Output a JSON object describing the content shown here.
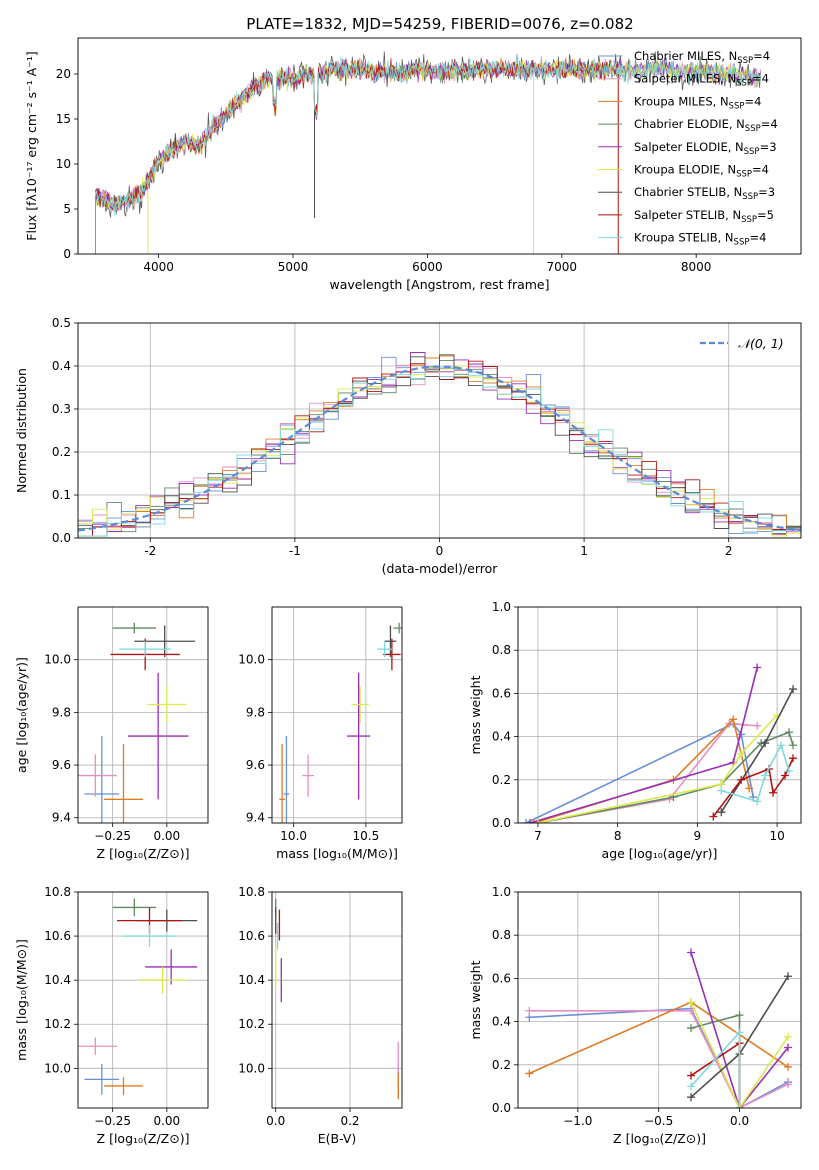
{
  "title": "PLATE=1832, MJD=54259, FIBERID=0076, z=0.082",
  "models": [
    {
      "name": "Chabrier MILES",
      "nssp": "4",
      "color": "#6a8fd9"
    },
    {
      "name": "Salpeter MILES",
      "nssp": "4",
      "color": "#e68fc3"
    },
    {
      "name": "Kroupa MILES",
      "nssp": "4",
      "color": "#e07b24"
    },
    {
      "name": "Chabrier ELODIE",
      "nssp": "4",
      "color": "#5f8a63"
    },
    {
      "name": "Salpeter ELODIE",
      "nssp": "3",
      "color": "#9a2fb8"
    },
    {
      "name": "Kroupa ELODIE",
      "nssp": "4",
      "color": "#dce84c"
    },
    {
      "name": "Chabrier STELIB",
      "nssp": "3",
      "color": "#4d4d4d"
    },
    {
      "name": "Salpeter STELIB",
      "nssp": "5",
      "color": "#b31313"
    },
    {
      "name": "Kroupa STELIB",
      "nssp": "4",
      "color": "#7fd9de"
    }
  ],
  "nssp_label": "N",
  "nssp_sub": "SSP",
  "chart_data": [
    {
      "id": "spectrum",
      "type": "line",
      "xlabel": "wavelength [Angstrom, rest frame]",
      "ylabel": "Flux [fλ10⁻¹⁷ erg cm⁻² s⁻¹ A⁻¹]",
      "xlim": [
        3400,
        8780
      ],
      "ylim": [
        0,
        24
      ],
      "xticks": [
        4000,
        5000,
        6000,
        7000,
        8000
      ],
      "yticks": [
        0,
        5,
        10,
        15,
        20
      ],
      "grid": false,
      "legend": "top-right",
      "envelope": {
        "x": [
          3530,
          3600,
          3700,
          3800,
          3900,
          4000,
          4100,
          4200,
          4300,
          4400,
          4500,
          4600,
          4700,
          4800,
          4900,
          5000,
          5100,
          5200,
          5300,
          5400,
          5500,
          5600,
          5700,
          5800,
          5900,
          6000,
          6100,
          6200,
          6300,
          6400,
          6500,
          6600,
          6700,
          6800,
          6900,
          7000,
          7100,
          7200,
          7300,
          7400,
          7500,
          7600,
          7700,
          7800,
          7900,
          8000,
          8100,
          8200,
          8300,
          8480
        ],
        "y": [
          6.5,
          6.0,
          5.5,
          6.0,
          7.5,
          10.5,
          11.5,
          12.5,
          12.0,
          14.0,
          15.5,
          17.0,
          18.5,
          19.5,
          19.5,
          19.5,
          19.8,
          20.0,
          20.5,
          20.5,
          20.5,
          20.3,
          20.3,
          20.0,
          20.5,
          20.5,
          20.3,
          20.5,
          20.3,
          20.5,
          20.5,
          20.5,
          20.7,
          20.5,
          20.5,
          20.5,
          20.5,
          20.5,
          20.5,
          20.5,
          20.3,
          20.5,
          20.5,
          20.5,
          20.3,
          20.3,
          20.3,
          20.0,
          20.0,
          19.5
        ]
      }
    },
    {
      "id": "histogram",
      "type": "bar",
      "xlabel": "(data-model)/error",
      "ylabel": "Normed distribution",
      "xlim": [
        -2.5,
        2.5
      ],
      "ylim": [
        0,
        0.5
      ],
      "xticks": [
        -2,
        -1,
        0,
        1,
        2
      ],
      "yticks": [
        0.0,
        0.1,
        0.2,
        0.3,
        0.4,
        0.5
      ],
      "grid": true,
      "legend": "top-right",
      "reference_label": "𝒩(0, 1)",
      "reference_color": "#5b8bd6",
      "bin_width": 0.1
    },
    {
      "id": "age_vs_Z",
      "type": "scatter",
      "xlabel": "Z [log₁₀(Z/Z⊙)]",
      "ylabel": "age  [log₁₀(age/yr)]",
      "xlim": [
        -0.41,
        0.19
      ],
      "ylim": [
        9.38,
        10.2
      ],
      "xticks": [
        -0.25,
        0.0
      ],
      "xticklabels": [
        "−0.25",
        "0.00"
      ],
      "yticks": [
        9.4,
        9.6,
        9.8,
        10.0
      ],
      "yticklabels": [
        "9.4",
        "9.6",
        "9.8",
        "10.0"
      ],
      "grid": true,
      "points": [
        {
          "x": -0.3,
          "y": 9.49,
          "xerr": 0.08,
          "yerr": 0.22
        },
        {
          "x": -0.33,
          "y": 9.56,
          "xerr": 0.1,
          "yerr": 0.08
        },
        {
          "x": -0.2,
          "y": 9.47,
          "xerr": 0.09,
          "yerr": 0.21
        },
        {
          "x": -0.15,
          "y": 10.12,
          "xerr": 0.1,
          "yerr": 0.02
        },
        {
          "x": -0.04,
          "y": 9.71,
          "xerr": 0.14,
          "yerr": 0.24
        },
        {
          "x": 0.0,
          "y": 9.83,
          "xerr": 0.09,
          "yerr": 0.07
        },
        {
          "x": -0.01,
          "y": 10.07,
          "xerr": 0.14,
          "yerr": 0.06
        },
        {
          "x": -0.1,
          "y": 10.02,
          "xerr": 0.16,
          "yerr": 0.06
        },
        {
          "x": -0.1,
          "y": 10.04,
          "xerr": 0.12,
          "yerr": 0.03
        }
      ]
    },
    {
      "id": "age_vs_mass",
      "type": "scatter",
      "xlabel": "mass [log₁₀(M/M⊙)]",
      "ylabel": "",
      "xlim": [
        9.85,
        10.75
      ],
      "ylim": [
        9.38,
        10.2
      ],
      "xticks": [
        10.0,
        10.5
      ],
      "xticklabels": [
        "10.0",
        "10.5"
      ],
      "yticks": [
        9.4,
        9.6,
        9.8,
        10.0
      ],
      "yticklabels": [
        "9.4",
        "9.6",
        "9.8",
        "10.0"
      ],
      "grid": true,
      "points": [
        {
          "x": 9.95,
          "y": 9.49,
          "xerr": 0.02,
          "yerr": 0.22
        },
        {
          "x": 10.1,
          "y": 9.56,
          "xerr": 0.04,
          "yerr": 0.08
        },
        {
          "x": 9.92,
          "y": 9.47,
          "xerr": 0.02,
          "yerr": 0.21
        },
        {
          "x": 10.73,
          "y": 10.12,
          "xerr": 0.04,
          "yerr": 0.02
        },
        {
          "x": 10.45,
          "y": 9.71,
          "xerr": 0.08,
          "yerr": 0.24
        },
        {
          "x": 10.46,
          "y": 9.83,
          "xerr": 0.06,
          "yerr": 0.07
        },
        {
          "x": 10.67,
          "y": 10.07,
          "xerr": 0.04,
          "yerr": 0.06
        },
        {
          "x": 10.68,
          "y": 10.02,
          "xerr": 0.06,
          "yerr": 0.06
        },
        {
          "x": 10.63,
          "y": 10.04,
          "xerr": 0.05,
          "yerr": 0.03
        }
      ]
    },
    {
      "id": "weight_vs_age",
      "type": "line",
      "xlabel": "age  [log₁₀(age/yr)]",
      "ylabel": "mass weight",
      "xlim": [
        6.75,
        10.3
      ],
      "ylim": [
        0,
        1.0
      ],
      "xticks": [
        7,
        8,
        9,
        10
      ],
      "xticklabels": [
        "7",
        "8",
        "9",
        "10"
      ],
      "yticks": [
        0.0,
        0.2,
        0.4,
        0.6,
        0.8,
        1.0
      ],
      "yticklabels": [
        "0.0",
        "0.2",
        "0.4",
        "0.6",
        "0.8",
        "1.0"
      ],
      "grid": true,
      "series": [
        [
          [
            6.85,
            0.0
          ],
          [
            9.45,
            0.46
          ],
          [
            9.55,
            0.41
          ],
          [
            9.7,
            0.12
          ]
        ],
        [
          [
            7.0,
            0.0
          ],
          [
            8.65,
            0.11
          ],
          [
            9.4,
            0.46
          ],
          [
            9.75,
            0.45
          ]
        ],
        [
          [
            6.95,
            0.0
          ],
          [
            8.7,
            0.2
          ],
          [
            9.45,
            0.48
          ],
          [
            9.65,
            0.16
          ]
        ],
        [
          [
            7.0,
            0.0
          ],
          [
            8.7,
            0.12
          ],
          [
            9.3,
            0.18
          ],
          [
            9.8,
            0.37
          ],
          [
            10.15,
            0.42
          ],
          [
            10.2,
            0.36
          ]
        ],
        [
          [
            6.9,
            0.0
          ],
          [
            9.45,
            0.28
          ],
          [
            9.75,
            0.72
          ]
        ],
        [
          [
            7.0,
            0.0
          ],
          [
            9.3,
            0.18
          ],
          [
            9.55,
            0.32
          ],
          [
            10.0,
            0.5
          ]
        ],
        [
          [
            9.3,
            0.05
          ],
          [
            9.85,
            0.37
          ],
          [
            10.2,
            0.62
          ]
        ],
        [
          [
            9.2,
            0.03
          ],
          [
            9.55,
            0.2
          ],
          [
            9.9,
            0.25
          ],
          [
            9.95,
            0.14
          ],
          [
            10.1,
            0.22
          ],
          [
            10.2,
            0.3
          ]
        ],
        [
          [
            9.3,
            0.15
          ],
          [
            9.75,
            0.1
          ],
          [
            9.85,
            0.22
          ],
          [
            10.05,
            0.36
          ],
          [
            10.15,
            0.24
          ]
        ]
      ]
    },
    {
      "id": "mass_vs_Z",
      "type": "scatter",
      "xlabel": "Z [log₁₀(Z/Z⊙)]",
      "ylabel": "mass [log₁₀(M/M⊙)]",
      "xlim": [
        -0.41,
        0.19
      ],
      "ylim": [
        9.82,
        10.8
      ],
      "xticks": [
        -0.25,
        0.0
      ],
      "xticklabels": [
        "−0.25",
        "0.00"
      ],
      "yticks": [
        10.0,
        10.2,
        10.4,
        10.6,
        10.8
      ],
      "yticklabels": [
        "10.0",
        "10.2",
        "10.4",
        "10.6",
        "10.8"
      ],
      "grid": true,
      "points": [
        {
          "x": -0.3,
          "y": 9.95,
          "xerr": 0.08,
          "yerr": 0.07
        },
        {
          "x": -0.33,
          "y": 10.1,
          "xerr": 0.1,
          "yerr": 0.04
        },
        {
          "x": -0.2,
          "y": 9.92,
          "xerr": 0.09,
          "yerr": 0.04
        },
        {
          "x": -0.15,
          "y": 10.73,
          "xerr": 0.1,
          "yerr": 0.04
        },
        {
          "x": 0.02,
          "y": 10.46,
          "xerr": 0.12,
          "yerr": 0.08
        },
        {
          "x": -0.02,
          "y": 10.4,
          "xerr": 0.11,
          "yerr": 0.06
        },
        {
          "x": 0.0,
          "y": 10.67,
          "xerr": 0.14,
          "yerr": 0.05
        },
        {
          "x": -0.08,
          "y": 10.67,
          "xerr": 0.15,
          "yerr": 0.06
        },
        {
          "x": -0.08,
          "y": 10.6,
          "xerr": 0.12,
          "yerr": 0.05
        }
      ]
    },
    {
      "id": "mass_vs_EBV",
      "type": "scatter",
      "xlabel": "E(B-V)",
      "ylabel": "",
      "xlim": [
        -0.01,
        0.34
      ],
      "ylim": [
        9.82,
        10.8
      ],
      "xticks": [
        0.0,
        0.2
      ],
      "xticklabels": [
        "0.0",
        "0.2"
      ],
      "yticks": [
        10.0,
        10.2,
        10.4,
        10.6,
        10.8
      ],
      "yticklabels": [
        "10.0",
        "10.2",
        "10.4",
        "10.6",
        "10.8"
      ],
      "grid": true,
      "points": [
        {
          "x": 0.33,
          "y": 9.95,
          "xerr": 0.0,
          "yerr": 0.07
        },
        {
          "x": 0.33,
          "y": 10.05,
          "xerr": 0.0,
          "yerr": 0.07
        },
        {
          "x": 0.33,
          "y": 9.92,
          "xerr": 0.0,
          "yerr": 0.06
        },
        {
          "x": 0.0,
          "y": 10.73,
          "xerr": 0.0,
          "yerr": 0.04
        },
        {
          "x": 0.015,
          "y": 10.4,
          "xerr": 0.0,
          "yerr": 0.1
        },
        {
          "x": 0.0,
          "y": 10.46,
          "xerr": 0.0,
          "yerr": 0.1
        },
        {
          "x": 0.0,
          "y": 10.67,
          "xerr": 0.0,
          "yerr": 0.06
        },
        {
          "x": 0.01,
          "y": 10.65,
          "xerr": 0.0,
          "yerr": 0.07
        },
        {
          "x": 0.005,
          "y": 10.6,
          "xerr": 0.0,
          "yerr": 0.06
        }
      ]
    },
    {
      "id": "weight_vs_Z",
      "type": "line",
      "xlabel": "Z [log₁₀(Z/Z⊙)]",
      "ylabel": "mass weight",
      "xlim": [
        -1.37,
        0.38
      ],
      "ylim": [
        0,
        1.0
      ],
      "xticks": [
        -1.0,
        -0.5,
        0.0
      ],
      "xticklabels": [
        "−1.0",
        "−0.5",
        "0.0"
      ],
      "yticks": [
        0.0,
        0.2,
        0.4,
        0.6,
        0.8,
        1.0
      ],
      "yticklabels": [
        "0.0",
        "0.2",
        "0.4",
        "0.6",
        "0.8",
        "1.0"
      ],
      "grid": true,
      "series": [
        [
          [
            -1.3,
            0.42
          ],
          [
            -0.3,
            0.46
          ],
          [
            0.0,
            0.0
          ],
          [
            0.3,
            0.12
          ]
        ],
        [
          [
            -1.3,
            0.45
          ],
          [
            -0.3,
            0.45
          ],
          [
            0.0,
            0.0
          ],
          [
            0.3,
            0.11
          ]
        ],
        [
          [
            -1.3,
            0.16
          ],
          [
            -0.3,
            0.49
          ],
          [
            0.3,
            0.19
          ]
        ],
        [
          [
            -0.3,
            0.37
          ],
          [
            0.0,
            0.43
          ],
          [
            0.0,
            0.0
          ]
        ],
        [
          [
            -0.3,
            0.72
          ],
          [
            0.0,
            0.0
          ],
          [
            0.3,
            0.28
          ]
        ],
        [
          [
            -0.3,
            0.49
          ],
          [
            0.0,
            0.0
          ],
          [
            0.3,
            0.33
          ]
        ],
        [
          [
            -0.3,
            0.05
          ],
          [
            0.0,
            0.25
          ],
          [
            0.3,
            0.61
          ]
        ],
        [
          [
            -0.3,
            0.15
          ],
          [
            0.0,
            0.3
          ],
          [
            0.0,
            0.0
          ]
        ],
        [
          [
            -0.3,
            0.1
          ],
          [
            0.0,
            0.35
          ],
          [
            0.0,
            0.0
          ]
        ]
      ]
    }
  ]
}
